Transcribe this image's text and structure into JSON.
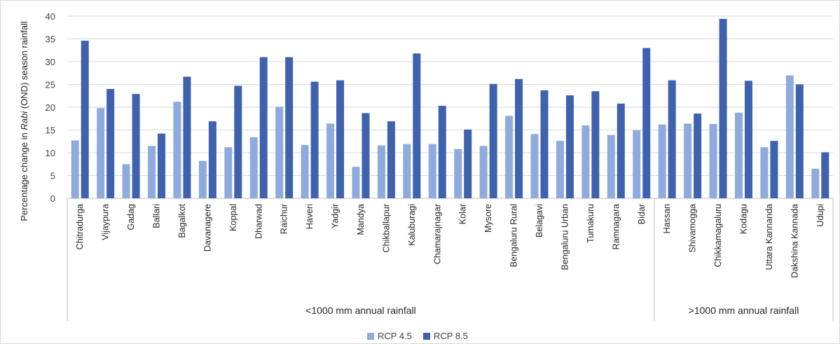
{
  "chart_data": {
    "type": "bar",
    "ylabel_prefix": "Percentage change in ",
    "ylabel_italic": "Rabi",
    "ylabel_suffix": " (OND) season rainfall",
    "ylim": [
      0,
      40
    ],
    "yticks": [
      0,
      5,
      10,
      15,
      20,
      25,
      30,
      35,
      40
    ],
    "grid": true,
    "legend_position": "bottom",
    "categories": [
      "Chitradurga",
      "Vijaypura",
      "Gadag",
      "Ballari",
      "Bagalkot",
      "Davanagere",
      "Koppal",
      "Dharwad",
      "Raichur",
      "Haveri",
      "Yadgir",
      "Mandya",
      "Chikballapur",
      "Kaluburagi",
      "Chamarajnagar",
      "Kolar",
      "Mysore",
      "Bengaluru Rural",
      "Belagavi",
      "Bengaluru Urban",
      "Tumakuru",
      "Ramnagara",
      "Bidar",
      "Hassan",
      "Shivamogga",
      "Chikkamagaluru",
      "Kodagu",
      "Uttara Kannanda",
      "Dakshina Kannada",
      "Udupi"
    ],
    "groups": [
      {
        "label": "<1000 mm annual rainfall",
        "count": 23
      },
      {
        "label": ">1000 mm annual rainfall",
        "count": 7
      }
    ],
    "series": [
      {
        "name": "RCP 4.5",
        "color": "#8faadc",
        "values": [
          12.7,
          19.8,
          7.5,
          11.5,
          21.2,
          8.2,
          11.2,
          13.4,
          20.1,
          11.7,
          16.4,
          6.9,
          11.6,
          11.9,
          11.9,
          10.8,
          11.5,
          18.1,
          14.1,
          12.6,
          16.0,
          13.9,
          14.9,
          16.2,
          16.4,
          16.3,
          18.8,
          11.2,
          27.0,
          6.5
        ]
      },
      {
        "name": "RCP 8.5",
        "color": "#3e62ae",
        "values": [
          34.6,
          24.0,
          22.9,
          14.2,
          26.7,
          16.9,
          24.7,
          31.0,
          31.0,
          25.6,
          25.9,
          18.7,
          16.9,
          31.8,
          20.3,
          15.1,
          25.1,
          26.2,
          23.7,
          22.6,
          23.5,
          20.8,
          33.0,
          25.9,
          18.6,
          39.4,
          25.8,
          12.6,
          25.0,
          10.1
        ]
      }
    ]
  }
}
